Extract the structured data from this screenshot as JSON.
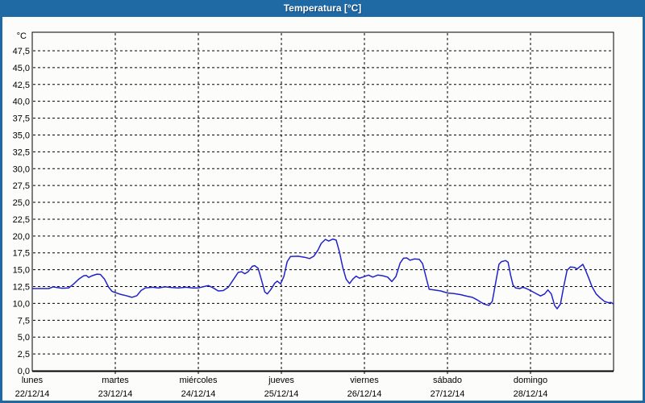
{
  "window": {
    "title": "Temperatura [°C]"
  },
  "colors": {
    "titlebar": "#1f6aa5",
    "frame": "#1f6aa5",
    "line": "#2121cc",
    "grid": "#000000",
    "text": "#000000",
    "background": "#fcfdfa"
  },
  "chart_data": {
    "type": "line",
    "title": "Temperatura [°C]",
    "ylabel": "°C",
    "ylim": [
      0,
      50.25
    ],
    "ytick_step": 2.5,
    "grid": "dashed",
    "legend_position": "none",
    "ytick_labels": [
      "0,0",
      "2,5",
      "5,0",
      "7,5",
      "10,0",
      "12,5",
      "15,0",
      "17,5",
      "20,0",
      "22,5",
      "25,0",
      "27,5",
      "30,0",
      "32,5",
      "35,0",
      "37,5",
      "40,0",
      "42,5",
      "45,0",
      "47,5"
    ],
    "x_axis": {
      "days": [
        {
          "name": "lunes",
          "date": "22/12/14"
        },
        {
          "name": "martes",
          "date": "23/12/14"
        },
        {
          "name": "miércoles",
          "date": "24/12/14"
        },
        {
          "name": "jueves",
          "date": "25/12/14"
        },
        {
          "name": "viernes",
          "date": "26/12/14"
        },
        {
          "name": "sábado",
          "date": "27/12/14"
        },
        {
          "name": "domingo",
          "date": "28/12/14"
        }
      ]
    },
    "series": [
      {
        "name": "Temperatura",
        "color": "#2121cc",
        "points": [
          [
            0.0,
            12.2
          ],
          [
            0.1,
            12.2
          ],
          [
            0.2,
            12.2
          ],
          [
            0.25,
            12.45
          ],
          [
            0.3,
            12.35
          ],
          [
            0.36,
            12.25
          ],
          [
            0.44,
            12.3
          ],
          [
            0.5,
            12.9
          ],
          [
            0.56,
            13.6
          ],
          [
            0.62,
            14.1
          ],
          [
            0.65,
            14.15
          ],
          [
            0.68,
            13.85
          ],
          [
            0.72,
            14.1
          ],
          [
            0.78,
            14.35
          ],
          [
            0.82,
            14.3
          ],
          [
            0.87,
            13.6
          ],
          [
            0.92,
            12.4
          ],
          [
            0.96,
            11.8
          ],
          [
            1.0,
            11.6
          ],
          [
            1.06,
            11.35
          ],
          [
            1.13,
            11.15
          ],
          [
            1.2,
            10.9
          ],
          [
            1.26,
            11.15
          ],
          [
            1.31,
            11.9
          ],
          [
            1.36,
            12.3
          ],
          [
            1.45,
            12.4
          ],
          [
            1.52,
            12.3
          ],
          [
            1.6,
            12.45
          ],
          [
            1.68,
            12.35
          ],
          [
            1.76,
            12.3
          ],
          [
            1.85,
            12.4
          ],
          [
            1.93,
            12.3
          ],
          [
            2.0,
            12.3
          ],
          [
            2.07,
            12.5
          ],
          [
            2.12,
            12.65
          ],
          [
            2.18,
            12.3
          ],
          [
            2.24,
            11.85
          ],
          [
            2.3,
            11.9
          ],
          [
            2.36,
            12.4
          ],
          [
            2.42,
            13.5
          ],
          [
            2.48,
            14.6
          ],
          [
            2.52,
            14.7
          ],
          [
            2.56,
            14.4
          ],
          [
            2.6,
            14.7
          ],
          [
            2.65,
            15.5
          ],
          [
            2.68,
            15.6
          ],
          [
            2.72,
            15.2
          ],
          [
            2.76,
            13.5
          ],
          [
            2.8,
            11.7
          ],
          [
            2.83,
            11.4
          ],
          [
            2.87,
            12.0
          ],
          [
            2.92,
            13.0
          ],
          [
            2.95,
            13.3
          ],
          [
            2.99,
            12.9
          ],
          [
            3.03,
            14.0
          ],
          [
            3.07,
            16.2
          ],
          [
            3.11,
            16.95
          ],
          [
            3.2,
            17.0
          ],
          [
            3.28,
            16.85
          ],
          [
            3.34,
            16.65
          ],
          [
            3.39,
            17.0
          ],
          [
            3.44,
            17.9
          ],
          [
            3.48,
            18.9
          ],
          [
            3.53,
            19.5
          ],
          [
            3.57,
            19.25
          ],
          [
            3.62,
            19.55
          ],
          [
            3.66,
            19.4
          ],
          [
            3.7,
            17.6
          ],
          [
            3.74,
            15.3
          ],
          [
            3.78,
            13.6
          ],
          [
            3.82,
            12.95
          ],
          [
            3.86,
            13.6
          ],
          [
            3.9,
            14.05
          ],
          [
            3.94,
            13.75
          ],
          [
            3.98,
            13.9
          ],
          [
            4.05,
            14.2
          ],
          [
            4.1,
            13.9
          ],
          [
            4.16,
            14.2
          ],
          [
            4.22,
            14.1
          ],
          [
            4.28,
            13.9
          ],
          [
            4.33,
            13.25
          ],
          [
            4.38,
            14.0
          ],
          [
            4.43,
            16.0
          ],
          [
            4.47,
            16.7
          ],
          [
            4.51,
            16.75
          ],
          [
            4.55,
            16.4
          ],
          [
            4.6,
            16.6
          ],
          [
            4.66,
            16.55
          ],
          [
            4.7,
            15.9
          ],
          [
            4.74,
            14.0
          ],
          [
            4.78,
            12.1
          ],
          [
            4.84,
            12.0
          ],
          [
            4.92,
            11.85
          ],
          [
            5.0,
            11.55
          ],
          [
            5.08,
            11.45
          ],
          [
            5.16,
            11.3
          ],
          [
            5.24,
            11.05
          ],
          [
            5.3,
            10.9
          ],
          [
            5.36,
            10.5
          ],
          [
            5.44,
            9.9
          ],
          [
            5.5,
            9.7
          ],
          [
            5.54,
            10.3
          ],
          [
            5.58,
            13.0
          ],
          [
            5.62,
            15.8
          ],
          [
            5.65,
            16.2
          ],
          [
            5.7,
            16.35
          ],
          [
            5.73,
            16.1
          ],
          [
            5.76,
            14.2
          ],
          [
            5.79,
            12.7
          ],
          [
            5.82,
            12.3
          ],
          [
            5.87,
            12.2
          ],
          [
            5.91,
            12.4
          ],
          [
            5.95,
            12.2
          ],
          [
            6.0,
            11.9
          ],
          [
            6.06,
            11.5
          ],
          [
            6.12,
            11.1
          ],
          [
            6.17,
            11.4
          ],
          [
            6.21,
            12.0
          ],
          [
            6.25,
            11.4
          ],
          [
            6.29,
            9.7
          ],
          [
            6.32,
            9.2
          ],
          [
            6.36,
            9.9
          ],
          [
            6.4,
            12.5
          ],
          [
            6.44,
            14.9
          ],
          [
            6.48,
            15.4
          ],
          [
            6.53,
            15.35
          ],
          [
            6.56,
            15.1
          ],
          [
            6.6,
            15.5
          ],
          [
            6.63,
            15.8
          ],
          [
            6.66,
            15.0
          ],
          [
            6.7,
            13.8
          ],
          [
            6.74,
            12.5
          ],
          [
            6.79,
            11.4
          ],
          [
            6.84,
            10.8
          ],
          [
            6.89,
            10.3
          ],
          [
            6.94,
            10.1
          ],
          [
            6.97,
            10.15
          ],
          [
            7.0,
            9.9
          ]
        ]
      }
    ]
  }
}
